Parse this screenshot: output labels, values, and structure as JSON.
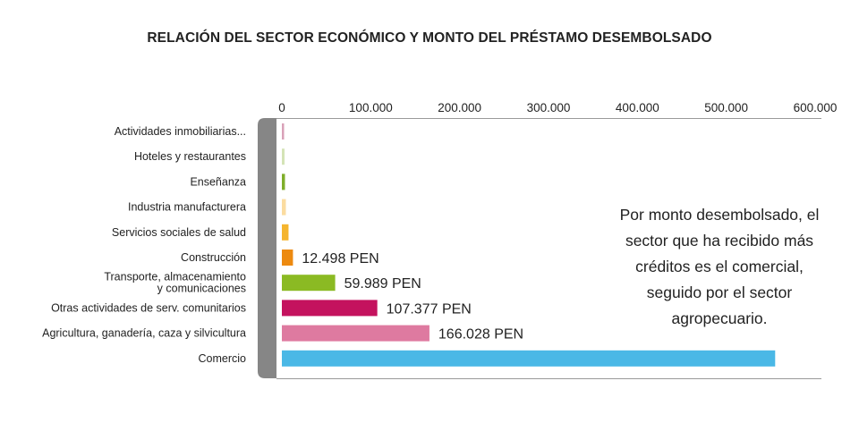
{
  "title": "RELACIÓN DEL SECTOR ECONÓMICO Y MONTO DEL PRÉSTAMO DESEMBOLSADO",
  "note": "Por monto desembolsado, el sector que ha recibido más créditos es el comercial, seguido por el sector agropecuario.",
  "chart_data": {
    "type": "bar",
    "orientation": "horizontal",
    "title": "RELACIÓN DEL SECTOR ECONÓMICO Y MONTO DEL PRÉSTAMO DESEMBOLSADO",
    "xlim": [
      0,
      600000
    ],
    "x_ticks": [
      0,
      100000,
      200000,
      300000,
      400000,
      500000,
      600000
    ],
    "x_tick_labels": [
      "0",
      "100.000",
      "200.000",
      "300.000",
      "400.000",
      "500.000",
      "600.000"
    ],
    "x_axis_position": "top",
    "grid": false,
    "categories": [
      [
        "Actividades inmobiliarias..."
      ],
      [
        "Hoteles y restaurantes"
      ],
      [
        "Enseñanza"
      ],
      [
        "Industria manufacturera"
      ],
      [
        "Servicios sociales de salud"
      ],
      [
        "Construcción"
      ],
      [
        "Transporte, almacenamiento",
        "y comunicaciones"
      ],
      [
        "Otras actividades de serv. comunitarios"
      ],
      [
        "Agricultura, ganadería, caza y silvicultura"
      ],
      [
        "Comercio"
      ]
    ],
    "values": [
      2500,
      3000,
      3500,
      4500,
      7500,
      12498,
      59989,
      107377,
      166028,
      555000
    ],
    "colors": [
      "#d9a1b8",
      "#d4e3b6",
      "#7fae2a",
      "#fbdca0",
      "#f5b52e",
      "#ed8a10",
      "#8bba23",
      "#c4125e",
      "#de7aa0",
      "#4ab8e6"
    ],
    "data_labels": [
      "",
      "",
      "",
      "",
      "",
      "12.498 PEN",
      "59.989 PEN",
      "107.377 PEN",
      "166.028 PEN",
      ""
    ]
  }
}
